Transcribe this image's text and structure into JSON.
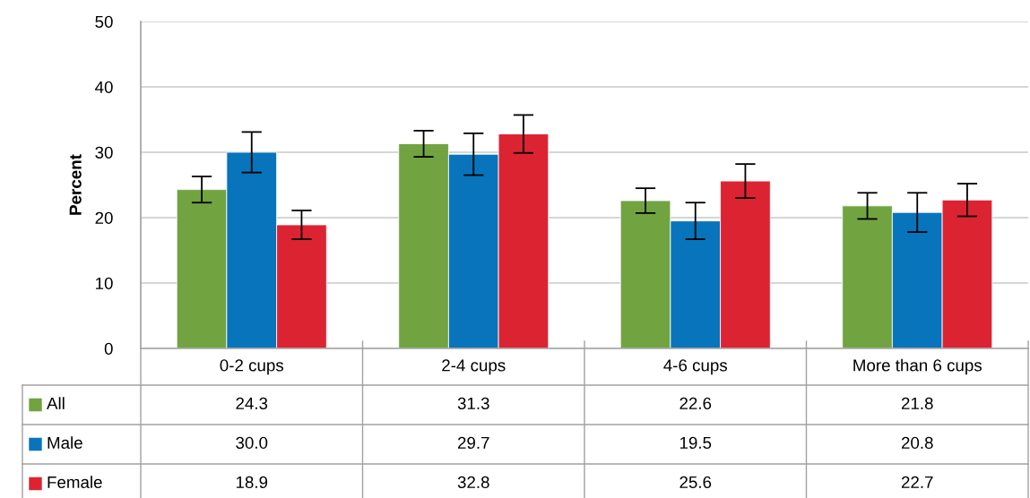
{
  "chart_data": {
    "type": "bar",
    "ylabel": "Percent",
    "categories": [
      "0-2 cups",
      "2-4 cups",
      "4-6 cups",
      "More than 6 cups"
    ],
    "series": [
      {
        "name": "All",
        "color": "#72a341",
        "values": [
          24.3,
          31.3,
          22.6,
          21.8
        ],
        "errors": [
          2.0,
          2.0,
          1.9,
          2.0
        ],
        "value_labels": [
          "24.3",
          "31.3",
          "22.6",
          "21.8"
        ]
      },
      {
        "name": "Male",
        "color": "#0874bb",
        "values": [
          30.0,
          29.7,
          19.5,
          20.8
        ],
        "errors": [
          3.1,
          3.2,
          2.8,
          3.0
        ],
        "value_labels": [
          "30.0",
          "29.7",
          "19.5",
          "20.8"
        ]
      },
      {
        "name": "Female",
        "color": "#dc2332",
        "values": [
          18.9,
          32.8,
          25.6,
          22.7
        ],
        "errors": [
          2.2,
          2.9,
          2.6,
          2.5
        ],
        "value_labels": [
          "18.9",
          "32.8",
          "25.6",
          "22.7"
        ]
      }
    ],
    "ylim": [
      0,
      50
    ],
    "yticks": [
      0,
      10,
      20,
      30,
      40,
      50
    ],
    "grid": "y",
    "legend": "bottom"
  }
}
